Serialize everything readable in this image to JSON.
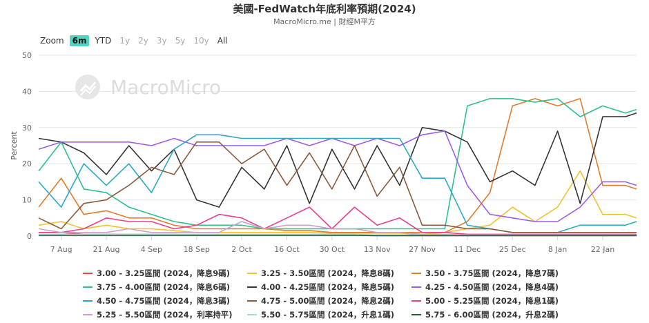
{
  "header": {
    "title": "美國-FedWatch年底利率預期(2024)",
    "subtitle": "MacroMicro.me | 財經M平方"
  },
  "zoom": {
    "label": "Zoom",
    "buttons": [
      {
        "label": "6m",
        "state": "active"
      },
      {
        "label": "YTD",
        "state": "enabled"
      },
      {
        "label": "1y",
        "state": "disabled"
      },
      {
        "label": "2y",
        "state": "disabled"
      },
      {
        "label": "3y",
        "state": "disabled"
      },
      {
        "label": "5y",
        "state": "disabled"
      },
      {
        "label": "10y",
        "state": "disabled"
      },
      {
        "label": "All",
        "state": "enabled"
      }
    ]
  },
  "watermark": {
    "text": "MacroMicro"
  },
  "chart_data": {
    "type": "line",
    "ylabel": "Percent",
    "ylim": [
      0,
      50
    ],
    "yticks": [
      0,
      10,
      20,
      30,
      40,
      50
    ],
    "xlim": [
      0,
      26.5
    ],
    "xticks": [
      {
        "x": 1,
        "label": "7 Aug"
      },
      {
        "x": 3,
        "label": "21 Aug"
      },
      {
        "x": 5,
        "label": "4 Sep"
      },
      {
        "x": 7,
        "label": "18 Sep"
      },
      {
        "x": 9,
        "label": "2 Oct"
      },
      {
        "x": 11,
        "label": "16 Oct"
      },
      {
        "x": 13,
        "label": "30 Oct"
      },
      {
        "x": 15,
        "label": "13 Nov"
      },
      {
        "x": 17,
        "label": "27 Nov"
      },
      {
        "x": 19,
        "label": "11 Dec"
      },
      {
        "x": 21,
        "label": "25 Dec"
      },
      {
        "x": 23,
        "label": "8 Jan"
      },
      {
        "x": 25,
        "label": "22 Jan"
      }
    ],
    "x": [
      0,
      1,
      2,
      3,
      4,
      5,
      6,
      7,
      8,
      9,
      10,
      11,
      12,
      13,
      14,
      15,
      16,
      17,
      18,
      19,
      20,
      21,
      22,
      23,
      24,
      25,
      26,
      26.5
    ],
    "legend_position": "bottom",
    "grid": true,
    "series": [
      {
        "name": "3.00 - 3.25區間 (2024，降息9碼)",
        "color": "#e8473c",
        "values": [
          1,
          1,
          0.5,
          0.5,
          0.5,
          0.5,
          0.5,
          0.3,
          0.3,
          0.3,
          0.3,
          0.3,
          0.3,
          0.3,
          0.3,
          0.3,
          0.3,
          0.3,
          0.3,
          0.2,
          0.2,
          0.2,
          0.2,
          0.2,
          0.2,
          0.2,
          0.2,
          0.2
        ]
      },
      {
        "name": "3.25 - 3.50區間 (2024，降息8碼)",
        "color": "#f2c12e",
        "values": [
          3,
          4,
          2,
          3,
          2,
          2,
          1.5,
          1,
          1,
          1,
          1,
          1,
          1,
          0.8,
          0.8,
          0.8,
          0.8,
          0.5,
          1,
          2,
          3,
          8,
          4,
          8,
          18,
          6,
          6,
          5
        ]
      },
      {
        "name": "3.50 - 3.75區間 (2024，降息7碼)",
        "color": "#e07b2c",
        "values": [
          8,
          16,
          6,
          7,
          5,
          5,
          3,
          2,
          2,
          2,
          2,
          1.5,
          1.5,
          1,
          1,
          1,
          1,
          1,
          1,
          4,
          12,
          36,
          38,
          36,
          38,
          14,
          14,
          13
        ]
      },
      {
        "name": "3.75 - 4.00區間 (2024，降息6碼)",
        "color": "#2fbf8f",
        "values": [
          18,
          26,
          13,
          12,
          8,
          6,
          4,
          3,
          3,
          3,
          2,
          2,
          2,
          2,
          2,
          2,
          2,
          2,
          2,
          36,
          38,
          38,
          37,
          38,
          33,
          36,
          34,
          35
        ]
      },
      {
        "name": "4.00 - 4.25區間 (2024，降息5碼)",
        "color": "#333333",
        "values": [
          27,
          26,
          23,
          17,
          25,
          18,
          24,
          10,
          8,
          19,
          13,
          25,
          9,
          24,
          13,
          25,
          14,
          30,
          29,
          26,
          15,
          18,
          14,
          29,
          9,
          33,
          33,
          34
        ]
      },
      {
        "name": "4.25 - 4.50區間 (2024，降息4碼)",
        "color": "#9b5de5",
        "values": [
          24,
          26,
          26,
          26,
          26,
          25,
          27,
          25,
          25,
          25,
          25,
          27,
          25,
          27,
          25,
          27,
          25,
          28,
          29,
          14,
          6,
          5,
          4,
          4,
          8,
          15,
          15,
          14
        ]
      },
      {
        "name": "4.50 - 4.75區間 (2024，降息3碼)",
        "color": "#2aa7c9",
        "values": [
          15,
          8,
          20,
          14,
          20,
          12,
          24,
          28,
          28,
          27,
          27,
          27,
          27,
          27,
          27,
          27,
          27,
          16,
          16,
          3,
          2,
          1,
          1,
          1,
          3,
          3,
          3,
          4
        ]
      },
      {
        "name": "4.75 - 5.00區間 (2024，降息2碼)",
        "color": "#8b5a3c",
        "values": [
          5,
          2,
          9,
          10,
          14,
          19,
          17,
          26,
          26,
          20,
          24,
          14,
          23,
          13,
          25,
          11,
          19,
          3,
          3,
          2,
          2,
          1,
          1,
          1,
          1,
          1,
          1,
          1
        ]
      },
      {
        "name": "5.00 - 5.25區間 (2024，降息1碼)",
        "color": "#e83e8c",
        "values": [
          1,
          1,
          2,
          5,
          4,
          4,
          2,
          3,
          6,
          5,
          2,
          5,
          8,
          2,
          8,
          3,
          5,
          1,
          1,
          0.5,
          0.5,
          0.5,
          0.5,
          0.5,
          0.5,
          0.5,
          0.5,
          0.5
        ]
      },
      {
        "name": "5.25 - 5.50區間 (2024，利率持平)",
        "color": "#c9a0c8",
        "values": [
          2,
          1,
          1,
          1,
          2,
          1,
          1,
          1,
          1,
          4,
          2,
          3,
          3,
          2,
          2,
          1,
          1,
          0.5,
          0.5,
          0.3,
          0.3,
          0.3,
          0.3,
          0.3,
          0.3,
          0.3,
          0.3,
          0.3
        ]
      },
      {
        "name": "5.50 - 5.75區間 (2024，升息1碼)",
        "color": "#a8dcc8",
        "values": [
          0.5,
          0.5,
          0.5,
          0.5,
          0.5,
          0.5,
          0.5,
          0.5,
          0.5,
          0.5,
          0.5,
          0.5,
          0.5,
          0.5,
          0.5,
          0.3,
          0.3,
          0.2,
          0.2,
          0.1,
          0.1,
          0.1,
          0.1,
          0.1,
          0.1,
          0.1,
          0.1,
          0.1
        ]
      },
      {
        "name": "5.75 - 6.00區間 (2024，升息2碼)",
        "color": "#1e5c3a",
        "values": [
          0.2,
          0.2,
          0.2,
          0.2,
          0.2,
          0.2,
          0.2,
          0.2,
          0.2,
          0.2,
          0.2,
          0.2,
          0.2,
          0.2,
          0.2,
          0.1,
          0.1,
          0.1,
          0.1,
          0.1,
          0.1,
          0.1,
          0.1,
          0.1,
          0.1,
          0.1,
          0.1,
          0.1
        ]
      }
    ]
  }
}
